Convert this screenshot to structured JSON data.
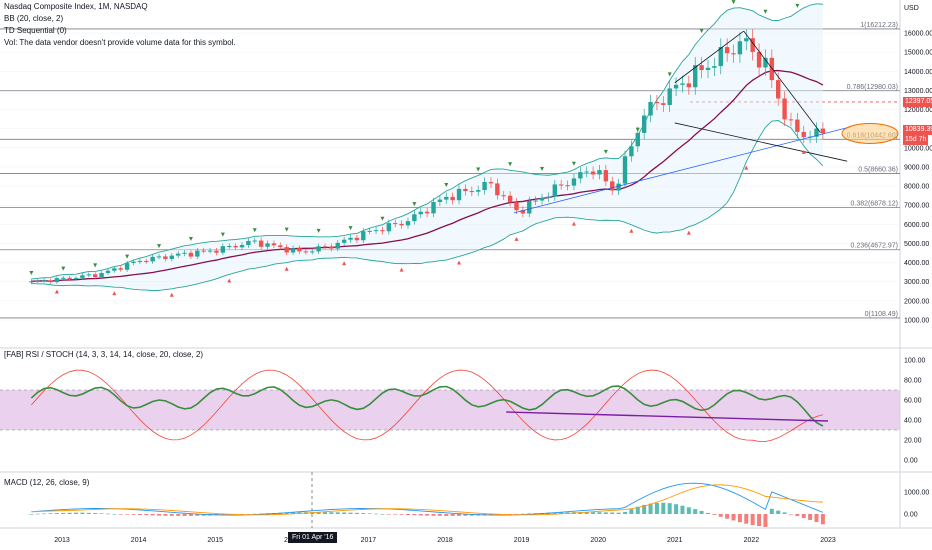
{
  "header": {
    "symbol_line": "Nasdaq Composite Index, 1M, NASDAQ",
    "bb_line": "BB (20, close, 2)",
    "td_line": "TD Sequential (0)",
    "vol_line": "Vol: The data vendor doesn't provide volume data for this symbol."
  },
  "panes": {
    "rsi_title": "[FAB] RSI / STOCH (14, 3, 3, 14, 14, close, 20, close, 2)",
    "macd_title": "MACD (12, 26, close, 9)"
  },
  "price_axis": {
    "currency": "USD",
    "ticks": [
      "16000.00",
      "15000.00",
      "14000.00",
      "13000.00",
      "12000.00",
      "11000.00",
      "10000.00",
      "9000.00",
      "8000.00",
      "7000.00",
      "6000.00",
      "5000.00",
      "4000.00",
      "3000.00",
      "2000.00",
      "1000.00"
    ],
    "tag_last_close": "12397.05",
    "tag_current": "10839.39",
    "tag_timer": "15d 7h"
  },
  "rsi_axis": {
    "ticks": [
      "100.00",
      "80.00",
      "60.00",
      "40.00",
      "20.00",
      "0.00"
    ]
  },
  "macd_axis": {
    "ticks": [
      "1000.00",
      "0.00"
    ]
  },
  "time_axis": {
    "labels": [
      "2013",
      "2014",
      "2015",
      "2016",
      "2017",
      "2018",
      "2019",
      "2020",
      "2021",
      "2022",
      "2023"
    ],
    "crosshair_label": "Fri 01 Apr '16"
  },
  "fib_levels": [
    {
      "label": "1(16212.23)",
      "value": 16212.23
    },
    {
      "label": "0.786(12980.03)",
      "value": 12980.03
    },
    {
      "label": "0.618(10442.60)",
      "value": 10442.6
    },
    {
      "label": "0.5(8660.36)",
      "value": 8660.36
    },
    {
      "label": "0.382(6878.12)",
      "value": 6878.12
    },
    {
      "label": "0.236(4672.97)",
      "value": 4672.97
    },
    {
      "label": "0(1108.49)",
      "value": 1108.49
    }
  ],
  "colors": {
    "up": "#26a69a",
    "down": "#ef5350",
    "bb_band": "#2196f3",
    "basis": "#880e4f",
    "rsi_band_fill": "#e1bee7",
    "stoch_green": "#388e3c",
    "rsi_red": "#f44336",
    "macd_blue": "#2196f3",
    "signal_orange": "#ff9800"
  },
  "chart_data": {
    "type": "candlestick",
    "title": "Nasdaq Composite Index, 1M, NASDAQ",
    "x_range": [
      "2012-08",
      "2023-01"
    ],
    "y_range": [
      0,
      16800
    ],
    "series": [
      {
        "name": "Nasdaq Composite Index",
        "x": [
          "2012-10",
          "2013-06",
          "2014-01",
          "2014-06",
          "2015-01",
          "2015-07",
          "2016-02",
          "2016-06",
          "2017-01",
          "2017-06",
          "2018-01",
          "2018-08",
          "2018-12",
          "2019-06",
          "2019-12",
          "2020-03",
          "2020-08",
          "2021-01",
          "2021-06",
          "2021-11",
          "2022-03",
          "2022-06",
          "2022-09",
          "2022-12"
        ],
        "close": [
          2980,
          3400,
          4100,
          4400,
          4650,
          5100,
          4550,
          4850,
          5600,
          6150,
          7400,
          8100,
          6650,
          8000,
          8950,
          7700,
          11800,
          13100,
          14500,
          15600,
          14200,
          11100,
          10600,
          10840
        ]
      }
    ],
    "rsi_pane": {
      "ylim": [
        0,
        100
      ],
      "band": [
        30,
        70
      ]
    },
    "macd_pane": {
      "params": "12, 26, close, 9"
    }
  }
}
